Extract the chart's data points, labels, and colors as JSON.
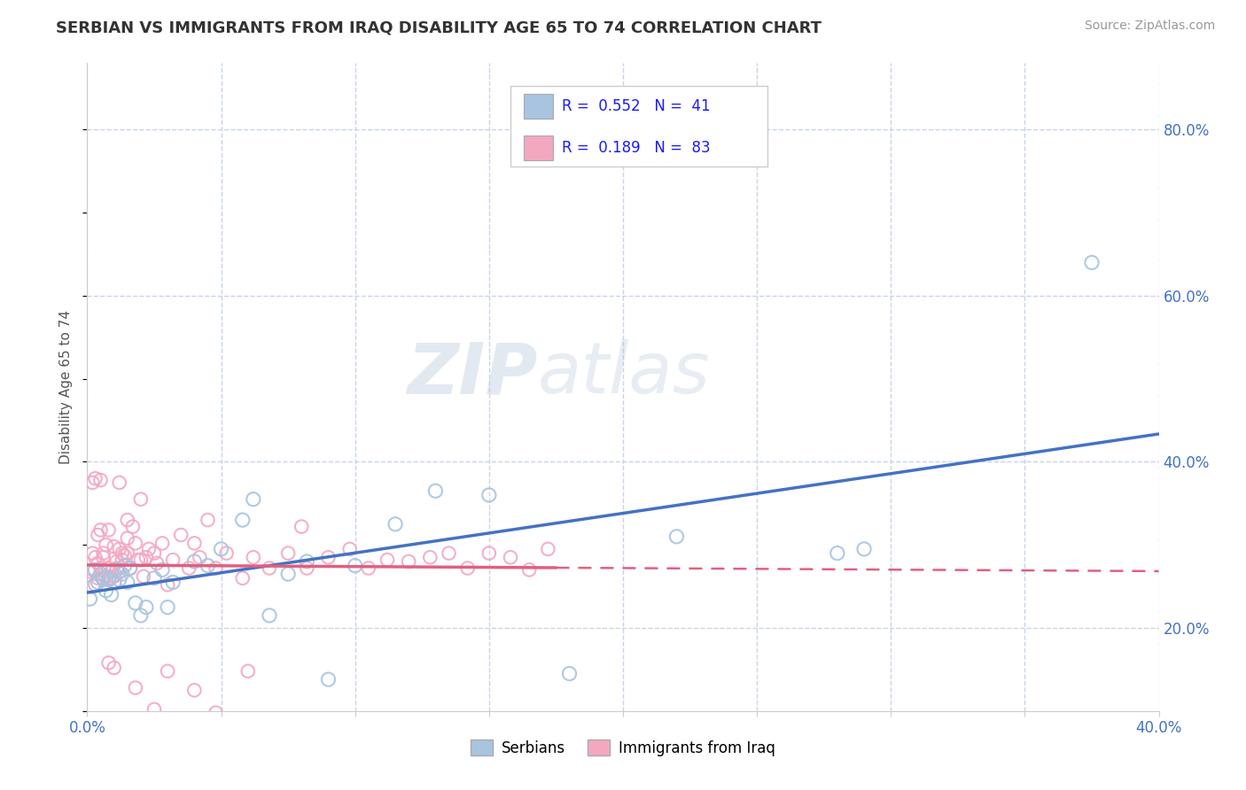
{
  "title": "SERBIAN VS IMMIGRANTS FROM IRAQ DISABILITY AGE 65 TO 74 CORRELATION CHART",
  "source": "Source: ZipAtlas.com",
  "ylabel": "Disability Age 65 to 74",
  "xlim": [
    0.0,
    0.4
  ],
  "ylim": [
    0.1,
    0.88
  ],
  "xticks": [
    0.0,
    0.05,
    0.1,
    0.15,
    0.2,
    0.25,
    0.3,
    0.35,
    0.4
  ],
  "yticks_right": [
    0.2,
    0.4,
    0.6,
    0.8
  ],
  "ytick_labels_right": [
    "20.0%",
    "40.0%",
    "60.0%",
    "80.0%"
  ],
  "color_serbian": "#a8c4e0",
  "color_iraq": "#f4a8c0",
  "color_line_serbian": "#4472c4",
  "color_line_iraq": "#e06080",
  "bg_color": "#ffffff",
  "grid_color": "#c8d4e8",
  "serbian_x": [
    0.001,
    0.002,
    0.003,
    0.004,
    0.005,
    0.006,
    0.007,
    0.008,
    0.009,
    0.01,
    0.011,
    0.012,
    0.013,
    0.014,
    0.015,
    0.016,
    0.018,
    0.02,
    0.022,
    0.025,
    0.028,
    0.03,
    0.032,
    0.04,
    0.045,
    0.05,
    0.058,
    0.062,
    0.068,
    0.075,
    0.082,
    0.09,
    0.1,
    0.115,
    0.13,
    0.15,
    0.18,
    0.22,
    0.28,
    0.29,
    0.375
  ],
  "serbian_y": [
    0.235,
    0.25,
    0.27,
    0.255,
    0.265,
    0.26,
    0.245,
    0.258,
    0.24,
    0.255,
    0.27,
    0.258,
    0.265,
    0.275,
    0.255,
    0.272,
    0.23,
    0.215,
    0.225,
    0.26,
    0.27,
    0.225,
    0.255,
    0.28,
    0.275,
    0.295,
    0.33,
    0.355,
    0.215,
    0.265,
    0.28,
    0.138,
    0.275,
    0.325,
    0.365,
    0.36,
    0.145,
    0.31,
    0.29,
    0.295,
    0.64
  ],
  "iraq_x": [
    0.001,
    0.002,
    0.002,
    0.003,
    0.003,
    0.004,
    0.004,
    0.005,
    0.005,
    0.006,
    0.006,
    0.007,
    0.007,
    0.008,
    0.008,
    0.008,
    0.009,
    0.009,
    0.01,
    0.01,
    0.011,
    0.011,
    0.012,
    0.012,
    0.013,
    0.013,
    0.014,
    0.015,
    0.015,
    0.016,
    0.017,
    0.018,
    0.019,
    0.02,
    0.021,
    0.022,
    0.023,
    0.025,
    0.026,
    0.028,
    0.03,
    0.032,
    0.035,
    0.038,
    0.04,
    0.042,
    0.045,
    0.048,
    0.052,
    0.058,
    0.062,
    0.068,
    0.075,
    0.082,
    0.09,
    0.098,
    0.105,
    0.112,
    0.12,
    0.128,
    0.135,
    0.142,
    0.15,
    0.158,
    0.165,
    0.172,
    0.002,
    0.003,
    0.004,
    0.005,
    0.006,
    0.008,
    0.01,
    0.012,
    0.015,
    0.018,
    0.02,
    0.025,
    0.03,
    0.04,
    0.048,
    0.06,
    0.08
  ],
  "iraq_y": [
    0.268,
    0.29,
    0.375,
    0.252,
    0.38,
    0.26,
    0.312,
    0.272,
    0.378,
    0.258,
    0.29,
    0.262,
    0.3,
    0.272,
    0.318,
    0.26,
    0.268,
    0.26,
    0.262,
    0.298,
    0.28,
    0.272,
    0.268,
    0.295,
    0.29,
    0.282,
    0.287,
    0.308,
    0.33,
    0.272,
    0.322,
    0.302,
    0.282,
    0.282,
    0.262,
    0.285,
    0.295,
    0.29,
    0.278,
    0.302,
    0.252,
    0.282,
    0.312,
    0.272,
    0.302,
    0.285,
    0.33,
    0.272,
    0.29,
    0.26,
    0.285,
    0.272,
    0.29,
    0.272,
    0.285,
    0.295,
    0.272,
    0.282,
    0.28,
    0.285,
    0.29,
    0.272,
    0.29,
    0.285,
    0.27,
    0.295,
    0.27,
    0.285,
    0.278,
    0.318,
    0.285,
    0.158,
    0.152,
    0.375,
    0.29,
    0.128,
    0.355,
    0.102,
    0.148,
    0.125,
    0.098,
    0.148,
    0.322
  ]
}
